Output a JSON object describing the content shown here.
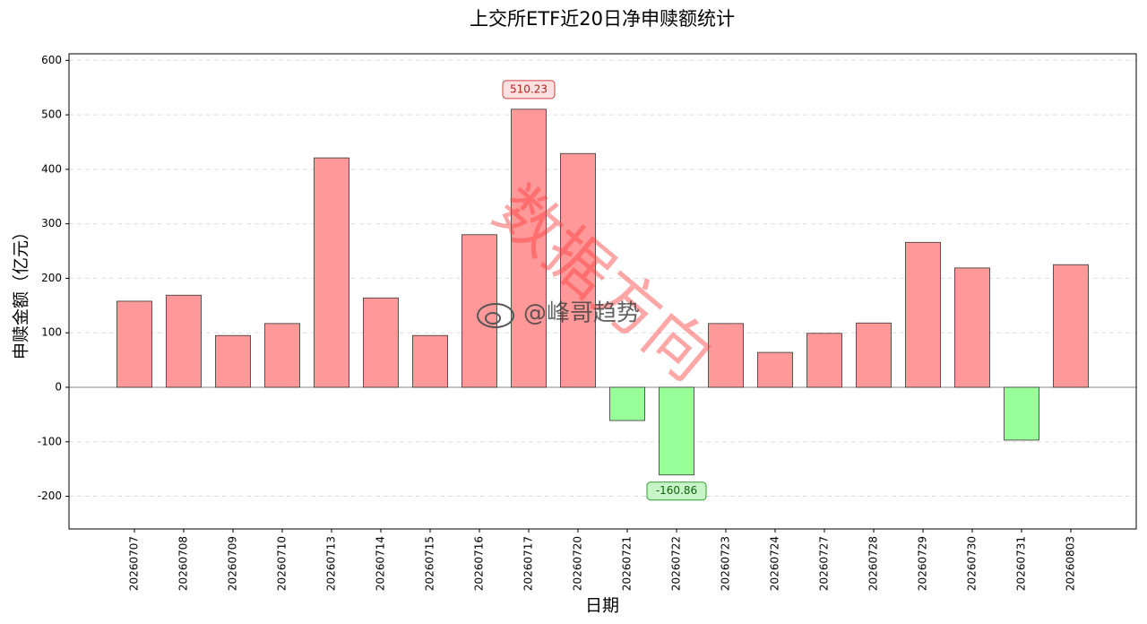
{
  "chart_data": {
    "type": "bar",
    "title": "上交所ETF近20日净申赎额统计",
    "x_label": "日期",
    "y_label": "申赎金额（亿元）",
    "categories": [
      "20260707",
      "20260708",
      "20260709",
      "20260710",
      "20260713",
      "20260714",
      "20260715",
      "20260716",
      "20260717",
      "20260720",
      "20260721",
      "20260722",
      "20260723",
      "20260724",
      "20260727",
      "20260728",
      "20260729",
      "20260730",
      "20260731",
      "20260803"
    ],
    "values": [
      158,
      169,
      95,
      117,
      421,
      164,
      95,
      280,
      510.23,
      429,
      -61,
      -160.86,
      117,
      64,
      99,
      118,
      266,
      219,
      -97,
      225
    ],
    "value_labels": [
      null,
      null,
      null,
      null,
      null,
      null,
      null,
      null,
      "510.23",
      null,
      null,
      "-160.86",
      null,
      null,
      null,
      null,
      null,
      null,
      null,
      null
    ],
    "positive_color": "#ff9999",
    "negative_color": "#99ff99",
    "ylim": [
      -260,
      612
    ],
    "yticks": [
      -200,
      -100,
      0,
      100,
      200,
      300,
      400,
      500,
      600
    ],
    "grid": true,
    "watermarks": [
      "数据方向",
      "@峰哥趋势"
    ]
  }
}
